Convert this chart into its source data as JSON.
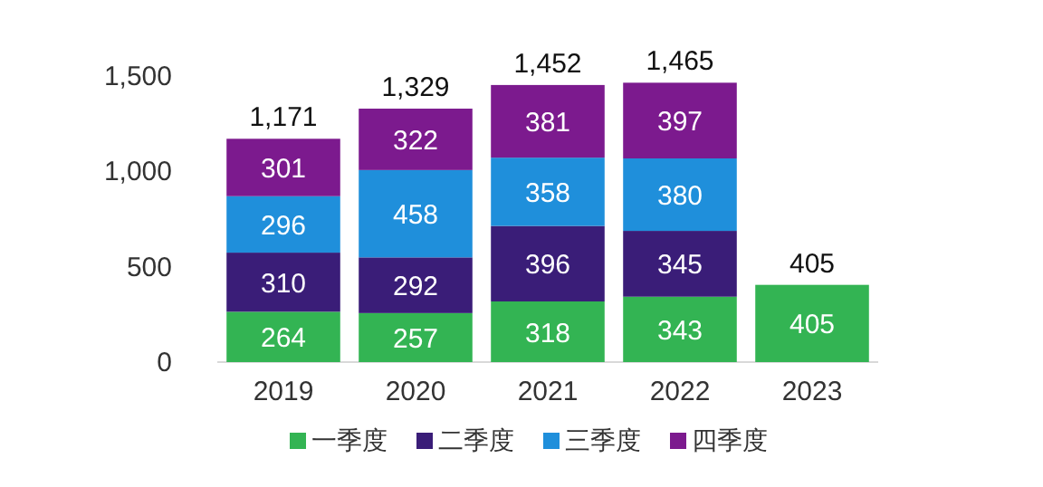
{
  "chart_data": {
    "type": "bar",
    "stacked": true,
    "data_labels": true,
    "legend": "bottom",
    "categories": [
      "2019",
      "2020",
      "2021",
      "2022",
      "2023"
    ],
    "series": [
      {
        "name": "一季度",
        "color": "#33b453",
        "values": [
          264,
          257,
          318,
          343,
          405
        ]
      },
      {
        "name": "二季度",
        "color": "#3a1d78",
        "values": [
          310,
          292,
          396,
          345,
          null
        ]
      },
      {
        "name": "三季度",
        "color": "#1f8fdb",
        "values": [
          296,
          458,
          358,
          380,
          null
        ]
      },
      {
        "name": "四季度",
        "color": "#7c1a8e",
        "values": [
          301,
          322,
          381,
          397,
          null
        ]
      }
    ],
    "totals": [
      "1,171",
      "1,329",
      "1,452",
      "1,465",
      "405"
    ],
    "ylim": [
      0,
      1500
    ],
    "yticks": [
      0,
      500,
      {
        "value": 1000,
        "label": "1,000"
      },
      {
        "value": 1500,
        "label": "1,500"
      }
    ]
  }
}
